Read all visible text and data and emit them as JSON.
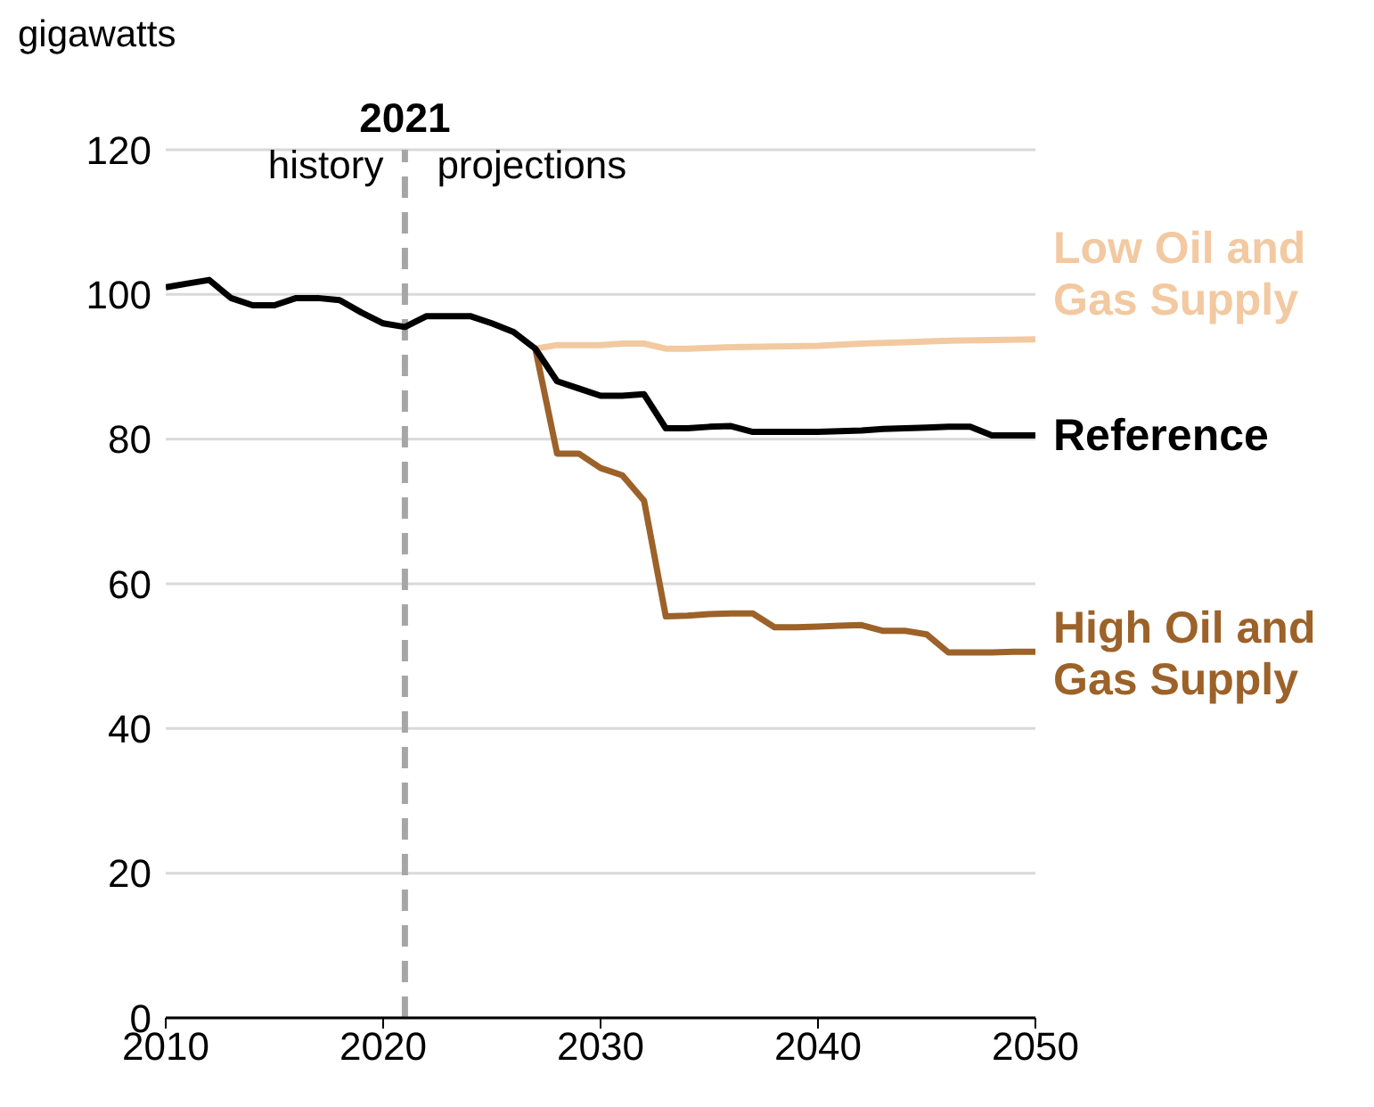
{
  "chart_data": {
    "type": "line",
    "ylabel": "gigawatts",
    "xlim": [
      2010,
      2050
    ],
    "xticks": [
      2010,
      2020,
      2030,
      2040,
      2050
    ],
    "ylim": [
      0,
      120
    ],
    "yticks": [
      0,
      20,
      40,
      60,
      80,
      100,
      120
    ],
    "grid": "y",
    "marker": "none",
    "line_style": "solid",
    "ref_lines": [
      {
        "axis": "x",
        "value": 2021,
        "label": "2021",
        "color": "#a6a6a6",
        "line_style": "dashed"
      }
    ],
    "annotations": [
      "history",
      "projections"
    ],
    "series": [
      {
        "name": "Low Oil and Gas Supply",
        "color": "#f2c9a0",
        "x": [
          2027,
          2028,
          2029,
          2030,
          2031,
          2032,
          2033,
          2034,
          2036,
          2038,
          2040,
          2042,
          2044,
          2046,
          2048,
          2050
        ],
        "values": [
          92.5,
          93,
          93,
          93,
          93.2,
          93.2,
          92.5,
          92.5,
          92.7,
          92.8,
          92.9,
          93.2,
          93.4,
          93.6,
          93.7,
          93.8
        ]
      },
      {
        "name": "High Oil and Gas Supply",
        "color": "#9c6229",
        "x": [
          2027,
          2028,
          2029,
          2030,
          2031,
          2032,
          2033,
          2034,
          2035,
          2036,
          2037,
          2038,
          2039,
          2040,
          2041,
          2042,
          2043,
          2044,
          2045,
          2046,
          2047,
          2048,
          2049,
          2050
        ],
        "values": [
          92.5,
          78,
          78,
          76,
          75,
          71.5,
          55.5,
          55.6,
          55.8,
          55.9,
          55.9,
          54,
          54,
          54.1,
          54.2,
          54.3,
          53.5,
          53.5,
          53,
          50.5,
          50.5,
          50.5,
          50.6,
          50.6
        ]
      },
      {
        "name": "Reference",
        "color": "#000000",
        "x": [
          2010,
          2011,
          2012,
          2013,
          2014,
          2015,
          2016,
          2017,
          2018,
          2019,
          2020,
          2021,
          2022,
          2023,
          2024,
          2025,
          2026,
          2027,
          2028,
          2029,
          2030,
          2031,
          2032,
          2033,
          2034,
          2035,
          2036,
          2037,
          2038,
          2039,
          2040,
          2041,
          2042,
          2043,
          2044,
          2045,
          2046,
          2047,
          2048,
          2049,
          2050
        ],
        "values": [
          101,
          101.5,
          102,
          99.5,
          98.5,
          98.5,
          99.5,
          99.5,
          99.2,
          97.5,
          96,
          95.5,
          97,
          97,
          97,
          96,
          94.8,
          92.5,
          88,
          87,
          86,
          86,
          86.2,
          81.5,
          81.5,
          81.7,
          81.8,
          81,
          81,
          81,
          81,
          81.1,
          81.2,
          81.4,
          81.5,
          81.6,
          81.7,
          81.7,
          80.5,
          80.5,
          80.5
        ]
      }
    ]
  }
}
